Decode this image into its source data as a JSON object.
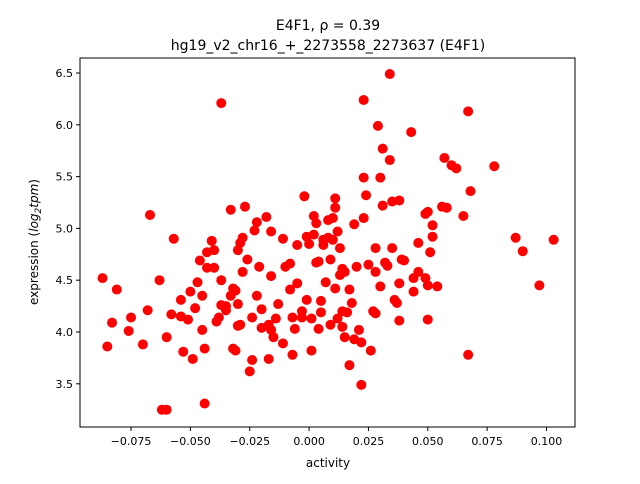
{
  "chart_data": {
    "type": "scatter",
    "title_line1": "E4F1, ρ = 0.39",
    "title_line2": "hg19_v2_chr16_+_2273558_2273637 (E4F1)",
    "xlabel": "activity",
    "ylabel_prefix": "expression (",
    "ylabel_math": "log",
    "ylabel_sub": "2",
    "ylabel_math2": "tpm",
    "ylabel_suffix": ")",
    "xlim": [
      -0.0965,
      0.112
    ],
    "ylim": [
      3.083,
      6.645
    ],
    "xticks": [
      {
        "v": -0.075,
        "label": "−0.075"
      },
      {
        "v": -0.05,
        "label": "−0.050"
      },
      {
        "v": -0.025,
        "label": "−0.025"
      },
      {
        "v": 0,
        "label": "0.000"
      },
      {
        "v": 0.025,
        "label": "0.025"
      },
      {
        "v": 0.05,
        "label": "0.050"
      },
      {
        "v": 0.075,
        "label": "0.075"
      },
      {
        "v": 0.1,
        "label": "0.100"
      }
    ],
    "yticks": [
      {
        "v": 3.5,
        "label": "3.5"
      },
      {
        "v": 4.0,
        "label": "4.0"
      },
      {
        "v": 4.5,
        "label": "4.5"
      },
      {
        "v": 5.0,
        "label": "5.0"
      },
      {
        "v": 5.5,
        "label": "5.5"
      },
      {
        "v": 6.0,
        "label": "6.0"
      },
      {
        "v": 6.5,
        "label": "6.5"
      }
    ],
    "color": "#ff0000",
    "grid": false,
    "points": [
      [
        -0.087,
        4.52
      ],
      [
        -0.085,
        3.86
      ],
      [
        -0.083,
        4.09
      ],
      [
        -0.081,
        4.41
      ],
      [
        -0.076,
        4.01
      ],
      [
        -0.075,
        4.14
      ],
      [
        -0.07,
        3.88
      ],
      [
        -0.068,
        4.21
      ],
      [
        -0.067,
        5.13
      ],
      [
        -0.063,
        4.5
      ],
      [
        -0.062,
        3.25
      ],
      [
        -0.06,
        3.25
      ],
      [
        -0.06,
        3.95
      ],
      [
        -0.058,
        4.17
      ],
      [
        -0.057,
        4.9
      ],
      [
        -0.054,
        4.31
      ],
      [
        -0.054,
        4.15
      ],
      [
        -0.053,
        3.81
      ],
      [
        -0.051,
        4.12
      ],
      [
        -0.05,
        4.39
      ],
      [
        -0.049,
        3.74
      ],
      [
        -0.048,
        4.23
      ],
      [
        -0.047,
        4.48
      ],
      [
        -0.046,
        4.69
      ],
      [
        -0.045,
        4.35
      ],
      [
        -0.045,
        4.02
      ],
      [
        -0.044,
        3.84
      ],
      [
        -0.044,
        3.31
      ],
      [
        -0.043,
        4.77
      ],
      [
        -0.043,
        4.62
      ],
      [
        -0.041,
        4.88
      ],
      [
        -0.04,
        4.79
      ],
      [
        -0.04,
        4.62
      ],
      [
        -0.039,
        4.1
      ],
      [
        -0.038,
        4.14
      ],
      [
        -0.037,
        6.21
      ],
      [
        -0.037,
        4.5
      ],
      [
        -0.037,
        4.26
      ],
      [
        -0.035,
        4.25
      ],
      [
        -0.035,
        4.21
      ],
      [
        -0.033,
        5.18
      ],
      [
        -0.033,
        4.35
      ],
      [
        -0.032,
        4.42
      ],
      [
        -0.032,
        3.84
      ],
      [
        -0.031,
        3.82
      ],
      [
        -0.031,
        4.4
      ],
      [
        -0.03,
        4.06
      ],
      [
        -0.03,
        4.79
      ],
      [
        -0.03,
        4.27
      ],
      [
        -0.029,
        4.86
      ],
      [
        -0.029,
        4.07
      ],
      [
        -0.028,
        4.58
      ],
      [
        -0.028,
        4.91
      ],
      [
        -0.027,
        5.21
      ],
      [
        -0.026,
        4.7
      ],
      [
        -0.025,
        3.62
      ],
      [
        -0.024,
        4.14
      ],
      [
        -0.024,
        3.73
      ],
      [
        -0.023,
        4.98
      ],
      [
        -0.022,
        5.06
      ],
      [
        -0.022,
        4.35
      ],
      [
        -0.021,
        4.63
      ],
      [
        -0.02,
        4.04
      ],
      [
        -0.02,
        4.22
      ],
      [
        -0.018,
        5.11
      ],
      [
        -0.017,
        3.74
      ],
      [
        -0.017,
        4.07
      ],
      [
        -0.016,
        4.97
      ],
      [
        -0.016,
        4.54
      ],
      [
        -0.016,
        4.02
      ],
      [
        -0.015,
        3.95
      ],
      [
        -0.014,
        4.13
      ],
      [
        -0.013,
        4.27
      ],
      [
        -0.011,
        4.9
      ],
      [
        -0.011,
        3.89
      ],
      [
        -0.01,
        4.63
      ],
      [
        -0.008,
        4.41
      ],
      [
        -0.008,
        4.66
      ],
      [
        -0.007,
        3.78
      ],
      [
        -0.007,
        4.14
      ],
      [
        -0.006,
        4.03
      ],
      [
        -0.005,
        4.84
      ],
      [
        -0.005,
        4.47
      ],
      [
        -0.003,
        4.2
      ],
      [
        -0.003,
        4.14
      ],
      [
        -0.002,
        5.31
      ],
      [
        -0.001,
        4.92
      ],
      [
        -0.001,
        4.31
      ],
      [
        0.0,
        4.85
      ],
      [
        0.001,
        4.13
      ],
      [
        0.001,
        3.82
      ],
      [
        0.002,
        4.94
      ],
      [
        0.002,
        5.12
      ],
      [
        0.003,
        5.05
      ],
      [
        0.003,
        4.67
      ],
      [
        0.004,
        4.03
      ],
      [
        0.004,
        4.68
      ],
      [
        0.005,
        4.19
      ],
      [
        0.005,
        4.3
      ],
      [
        0.006,
        4.89
      ],
      [
        0.006,
        4.84
      ],
      [
        0.007,
        4.48
      ],
      [
        0.008,
        5.08
      ],
      [
        0.008,
        4.91
      ],
      [
        0.009,
        4.07
      ],
      [
        0.009,
        4.7
      ],
      [
        0.01,
        5.1
      ],
      [
        0.01,
        4.89
      ],
      [
        0.011,
        5.2
      ],
      [
        0.011,
        4.42
      ],
      [
        0.011,
        5.29
      ],
      [
        0.012,
        4.13
      ],
      [
        0.012,
        4.97
      ],
      [
        0.013,
        4.81
      ],
      [
        0.013,
        4.55
      ],
      [
        0.014,
        4.61
      ],
      [
        0.014,
        4.05
      ],
      [
        0.014,
        4.2
      ],
      [
        0.015,
        3.95
      ],
      [
        0.015,
        4.58
      ],
      [
        0.016,
        4.19
      ],
      [
        0.017,
        4.41
      ],
      [
        0.017,
        3.68
      ],
      [
        0.018,
        4.28
      ],
      [
        0.019,
        5.04
      ],
      [
        0.019,
        3.93
      ],
      [
        0.02,
        4.63
      ],
      [
        0.021,
        4.02
      ],
      [
        0.022,
        3.49
      ],
      [
        0.022,
        3.9
      ],
      [
        0.023,
        6.24
      ],
      [
        0.023,
        5.1
      ],
      [
        0.023,
        5.49
      ],
      [
        0.024,
        5.32
      ],
      [
        0.025,
        4.65
      ],
      [
        0.026,
        3.82
      ],
      [
        0.027,
        4.2
      ],
      [
        0.028,
        4.81
      ],
      [
        0.028,
        4.58
      ],
      [
        0.028,
        4.18
      ],
      [
        0.029,
        5.99
      ],
      [
        0.03,
        4.44
      ],
      [
        0.03,
        5.49
      ],
      [
        0.031,
        5.22
      ],
      [
        0.031,
        5.77
      ],
      [
        0.032,
        4.67
      ],
      [
        0.033,
        4.64
      ],
      [
        0.034,
        5.66
      ],
      [
        0.034,
        6.49
      ],
      [
        0.035,
        5.26
      ],
      [
        0.035,
        4.81
      ],
      [
        0.036,
        4.31
      ],
      [
        0.037,
        4.28
      ],
      [
        0.038,
        5.27
      ],
      [
        0.038,
        4.47
      ],
      [
        0.038,
        4.11
      ],
      [
        0.039,
        4.7
      ],
      [
        0.04,
        4.69
      ],
      [
        0.043,
        5.93
      ],
      [
        0.044,
        4.52
      ],
      [
        0.044,
        4.39
      ],
      [
        0.046,
        4.86
      ],
      [
        0.046,
        4.58
      ],
      [
        0.049,
        5.14
      ],
      [
        0.049,
        4.52
      ],
      [
        0.05,
        5.16
      ],
      [
        0.05,
        4.12
      ],
      [
        0.05,
        4.45
      ],
      [
        0.051,
        4.77
      ],
      [
        0.052,
        4.92
      ],
      [
        0.052,
        5.03
      ],
      [
        0.054,
        4.44
      ],
      [
        0.056,
        5.21
      ],
      [
        0.057,
        5.68
      ],
      [
        0.058,
        5.2
      ],
      [
        0.06,
        5.61
      ],
      [
        0.062,
        5.58
      ],
      [
        0.065,
        5.12
      ],
      [
        0.067,
        6.13
      ],
      [
        0.067,
        3.78
      ],
      [
        0.068,
        5.36
      ],
      [
        0.078,
        5.6
      ],
      [
        0.087,
        4.91
      ],
      [
        0.09,
        4.78
      ],
      [
        0.097,
        4.45
      ],
      [
        0.103,
        4.89
      ]
    ]
  }
}
